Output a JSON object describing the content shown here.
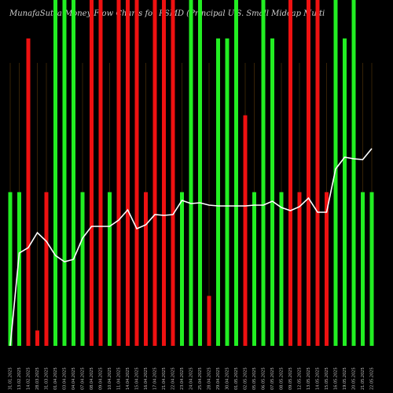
{
  "chart_data": {
    "type": "bar",
    "title": "MunafaSutra  Money Flow  Charts for PSMD          (Principal U.S. Small Midcap Multi",
    "categories": [
      "31.01.2025",
      "13.02.2025",
      "14.02.2025",
      "28.03.2025",
      "31.03.2025",
      "01.04.2025",
      "03.04.2025",
      "04.04.2025",
      "07.04.2025",
      "08.04.2025",
      "09.04.2025",
      "10.04.2025",
      "11.04.2025",
      "14.04.2025",
      "15.04.2025",
      "16.04.2025",
      "17.04.2025",
      "21.04.2025",
      "22.04.2025",
      "23.04.2025",
      "24.04.2025",
      "25.04.2025",
      "28.04.2025",
      "29.04.2025",
      "30.04.2025",
      "01.05.2025",
      "02.05.2025",
      "05.05.2025",
      "06.05.2025",
      "07.05.2025",
      "08.05.2025",
      "09.05.2025",
      "12.05.2025",
      "13.05.2025",
      "14.05.2025",
      "15.05.2025",
      "16.05.2025",
      "19.05.2025",
      "20.05.2025",
      "21.05.2025",
      "22.05.2025"
    ],
    "bar_values": [
      200,
      200,
      400,
      20,
      200,
      450,
      450,
      450,
      200,
      450,
      450,
      200,
      450,
      450,
      450,
      200,
      450,
      450,
      450,
      200,
      450,
      450,
      65,
      400,
      400,
      450,
      300,
      200,
      450,
      400,
      200,
      450,
      200,
      450,
      450,
      200,
      450,
      400,
      450,
      200,
      200
    ],
    "bar_colors": [
      "green",
      "green",
      "red",
      "red",
      "red",
      "green",
      "green",
      "green",
      "green",
      "red",
      "red",
      "green",
      "red",
      "red",
      "red",
      "red",
      "red",
      "red",
      "red",
      "green",
      "green",
      "green",
      "red",
      "green",
      "green",
      "green",
      "red",
      "green",
      "green",
      "green",
      "green",
      "red",
      "red",
      "red",
      "red",
      "red",
      "green",
      "green",
      "green",
      "green",
      "green"
    ],
    "line_values": [
      0,
      118,
      125,
      144,
      133,
      115,
      107,
      110,
      137,
      152,
      152,
      152,
      160,
      173,
      149,
      154,
      167,
      166,
      167,
      185,
      181,
      182,
      179,
      178,
      178,
      178,
      178,
      179,
      179,
      184,
      176,
      172,
      177,
      188,
      170,
      170,
      225,
      240,
      238,
      237,
      251
    ],
    "ylim": [
      0,
      450
    ],
    "line_ylim": [
      0,
      440
    ],
    "grid": false,
    "colors": {
      "green": "#22ee22",
      "red": "#ee1111",
      "line": "#ffffff",
      "guide": "#5a3a0a",
      "background": "#000000"
    }
  }
}
